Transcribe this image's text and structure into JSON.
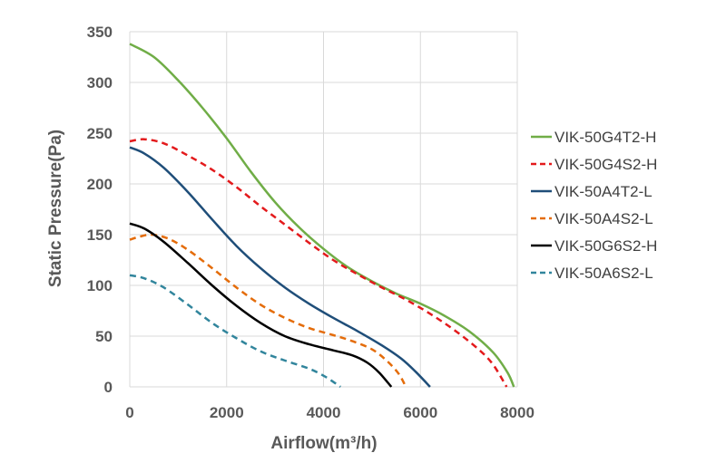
{
  "chart_data": {
    "type": "line",
    "title": "",
    "xlabel": "Airflow(m³/h)",
    "ylabel": "Static Pressure(Pa)",
    "xlim": [
      0,
      8000
    ],
    "ylim": [
      0,
      350
    ],
    "xticks": [
      0,
      2000,
      4000,
      6000,
      8000
    ],
    "yticks": [
      0,
      50,
      100,
      150,
      200,
      250,
      300,
      350
    ],
    "grid": true,
    "legend_position": "right",
    "series": [
      {
        "name": "VIK-50G4T2-H",
        "color": "#70ad47",
        "dash": "solid",
        "points": [
          [
            0,
            338
          ],
          [
            500,
            325
          ],
          [
            1000,
            302
          ],
          [
            1500,
            275
          ],
          [
            2000,
            245
          ],
          [
            2500,
            212
          ],
          [
            3000,
            182
          ],
          [
            3500,
            157
          ],
          [
            4000,
            136
          ],
          [
            4500,
            118
          ],
          [
            5000,
            104
          ],
          [
            5500,
            92
          ],
          [
            6000,
            82
          ],
          [
            6500,
            70
          ],
          [
            7000,
            55
          ],
          [
            7500,
            34
          ],
          [
            7800,
            14
          ],
          [
            7930,
            0
          ]
        ]
      },
      {
        "name": "VIK-50G4S2-H",
        "color": "#e31a1c",
        "dash": "dashed",
        "points": [
          [
            0,
            242
          ],
          [
            300,
            244
          ],
          [
            700,
            240
          ],
          [
            1200,
            228
          ],
          [
            1700,
            214
          ],
          [
            2200,
            197
          ],
          [
            2700,
            178
          ],
          [
            3200,
            160
          ],
          [
            3700,
            142
          ],
          [
            4200,
            125
          ],
          [
            4700,
            111
          ],
          [
            5200,
            98
          ],
          [
            5700,
            86
          ],
          [
            6200,
            72
          ],
          [
            6700,
            56
          ],
          [
            7200,
            37
          ],
          [
            7500,
            22
          ],
          [
            7780,
            0
          ]
        ]
      },
      {
        "name": "VIK-50A4T2-L",
        "color": "#1f4e79",
        "dash": "solid",
        "points": [
          [
            0,
            236
          ],
          [
            300,
            230
          ],
          [
            700,
            216
          ],
          [
            1200,
            192
          ],
          [
            1700,
            165
          ],
          [
            2200,
            139
          ],
          [
            2700,
            117
          ],
          [
            3200,
            98
          ],
          [
            3700,
            82
          ],
          [
            4200,
            68
          ],
          [
            4700,
            55
          ],
          [
            5200,
            41
          ],
          [
            5600,
            28
          ],
          [
            5900,
            15
          ],
          [
            6200,
            0
          ]
        ]
      },
      {
        "name": "VIK-50A4S2-L",
        "color": "#e46c0a",
        "dash": "dashed",
        "points": [
          [
            0,
            145
          ],
          [
            200,
            148
          ],
          [
            450,
            150
          ],
          [
            800,
            146
          ],
          [
            1200,
            135
          ],
          [
            1700,
            117
          ],
          [
            2200,
            98
          ],
          [
            2700,
            81
          ],
          [
            3200,
            68
          ],
          [
            3700,
            58
          ],
          [
            4200,
            51
          ],
          [
            4600,
            45
          ],
          [
            5000,
            37
          ],
          [
            5300,
            26
          ],
          [
            5550,
            13
          ],
          [
            5700,
            0
          ]
        ]
      },
      {
        "name": "VIK-50G6S2-H",
        "color": "#000000",
        "dash": "solid",
        "points": [
          [
            0,
            161
          ],
          [
            300,
            156
          ],
          [
            700,
            143
          ],
          [
            1200,
            122
          ],
          [
            1700,
            100
          ],
          [
            2200,
            80
          ],
          [
            2700,
            63
          ],
          [
            3200,
            50
          ],
          [
            3700,
            42
          ],
          [
            4200,
            36
          ],
          [
            4600,
            31
          ],
          [
            4900,
            24
          ],
          [
            5150,
            14
          ],
          [
            5400,
            0
          ]
        ]
      },
      {
        "name": "VIK-50A6S2-L",
        "color": "#31859c",
        "dash": "dashed",
        "points": [
          [
            0,
            110
          ],
          [
            300,
            107
          ],
          [
            700,
            98
          ],
          [
            1200,
            81
          ],
          [
            1700,
            63
          ],
          [
            2200,
            48
          ],
          [
            2700,
            35
          ],
          [
            3200,
            26
          ],
          [
            3700,
            18
          ],
          [
            4000,
            11
          ],
          [
            4200,
            5
          ],
          [
            4350,
            0
          ]
        ]
      }
    ]
  }
}
